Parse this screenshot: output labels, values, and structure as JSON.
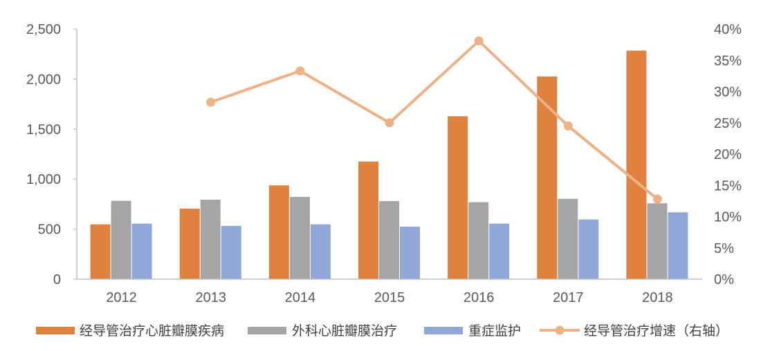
{
  "chart_data": {
    "type": "bar",
    "title": "",
    "xlabel": "",
    "ylabel": "",
    "categories": [
      "2012",
      "2013",
      "2014",
      "2015",
      "2016",
      "2017",
      "2018"
    ],
    "series": [
      {
        "name": "经导管治疗心脏瓣膜疾病",
        "type": "bar",
        "axis": "left",
        "color": "#E0823F",
        "values": [
          548,
          705,
          937,
          1176,
          1628,
          2026,
          2284
        ]
      },
      {
        "name": "外科心脏瓣膜治疗",
        "type": "bar",
        "axis": "left",
        "color": "#A5A5A5",
        "values": [
          783,
          794,
          822,
          780,
          769,
          803,
          758
        ]
      },
      {
        "name": "重症监护",
        "type": "bar",
        "axis": "left",
        "color": "#8FA8D8",
        "values": [
          555,
          532,
          548,
          525,
          555,
          596,
          668
        ]
      },
      {
        "name": "经导管治疗增速（右轴）",
        "type": "line",
        "axis": "right",
        "color": "#EEB185",
        "values": [
          null,
          28.3,
          33.3,
          25.0,
          38.1,
          24.5,
          12.8
        ]
      }
    ],
    "left_axis": {
      "ylim": [
        0,
        2500
      ],
      "ticks": [
        0,
        500,
        1000,
        1500,
        2000,
        2500
      ],
      "tick_labels": [
        "0",
        "500",
        "1,000",
        "1,500",
        "2,000",
        "2,500"
      ]
    },
    "right_axis": {
      "ylim": [
        0,
        40
      ],
      "ticks": [
        0,
        5,
        10,
        15,
        20,
        25,
        30,
        35,
        40
      ],
      "tick_labels": [
        "0%",
        "5%",
        "10%",
        "15%",
        "20%",
        "25%",
        "30%",
        "35%",
        "40%"
      ]
    },
    "grid": false,
    "legend_position": "bottom"
  },
  "legend": {
    "items": [
      {
        "label": "经导管治疗心脏瓣膜疾病",
        "kind": "bar"
      },
      {
        "label": "外科心脏瓣膜治疗",
        "kind": "bar"
      },
      {
        "label": "重症监护",
        "kind": "bar"
      },
      {
        "label": "经导管治疗增速（右轴）",
        "kind": "line"
      }
    ]
  },
  "colors": {
    "axis": "#BFBFBF",
    "text": "#595959"
  }
}
